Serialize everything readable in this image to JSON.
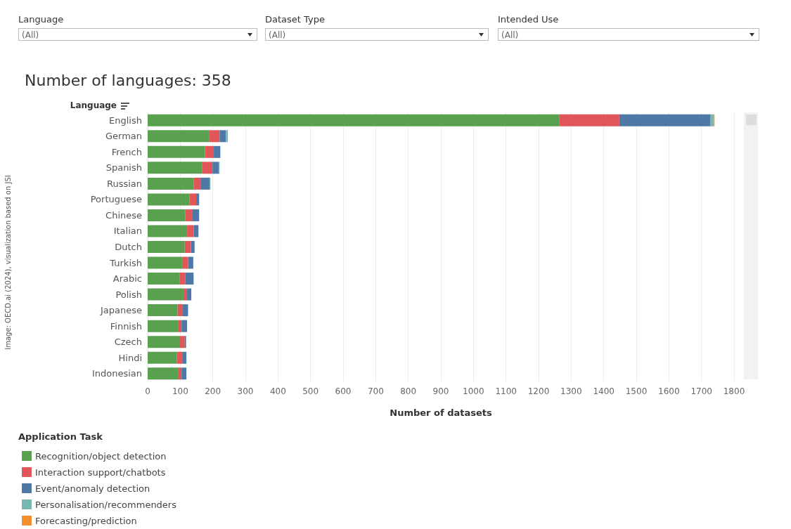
{
  "chart_data": {
    "type": "bar",
    "orientation": "horizontal",
    "stacked": true,
    "title": "Number of languages: 358",
    "xlabel": "Number of datasets",
    "ylabel": "Language",
    "legend_title": "Application Task",
    "annotations": [
      "Language",
      "(All)",
      "Dataset Type",
      "(All)",
      "Intended Use",
      "(All)",
      "Image: OECD.ai (2024), visualization based on JSI"
    ],
    "categories": [
      "English",
      "German",
      "French",
      "Spanish",
      "Russian",
      "Portuguese",
      "Chinese",
      "Italian",
      "Dutch",
      "Turkish",
      "Arabic",
      "Polish",
      "Japanese",
      "Finnish",
      "Czech",
      "Hindi",
      "Indonesian"
    ],
    "series": [
      {
        "name": "Recognition/object detection",
        "color": "#59a14f",
        "values": [
          1263,
          188,
          176,
          168,
          142,
          129,
          116,
          121,
          114,
          106,
          99,
          110,
          92,
          93,
          97,
          90,
          93
        ]
      },
      {
        "name": "Interaction support/chatbots",
        "color": "#e15759",
        "values": [
          185,
          33,
          27,
          31,
          22,
          20,
          22,
          21,
          19,
          18,
          17,
          11,
          16,
          11,
          17,
          16,
          11
        ]
      },
      {
        "name": "Event/anomaly detection",
        "color": "#4e79a7",
        "values": [
          280,
          19,
          20,
          20,
          26,
          9,
          20,
          14,
          11,
          16,
          25,
          13,
          16,
          17,
          4,
          13,
          15
        ]
      },
      {
        "name": "Personalisation/recommenders",
        "color": "#76b7b2",
        "values": [
          9,
          6,
          0,
          2,
          3,
          0,
          0,
          0,
          0,
          0,
          0,
          0,
          0,
          0,
          0,
          0,
          0
        ]
      },
      {
        "name": "Forecasting/prediction",
        "color": "#f28e2b",
        "values": [
          3,
          0,
          0,
          0,
          0,
          0,
          0,
          0,
          0,
          0,
          0,
          0,
          0,
          0,
          0,
          0,
          0
        ]
      }
    ],
    "xlim": [
      0,
      1800
    ],
    "xticks": [
      0,
      100,
      200,
      300,
      400,
      500,
      600,
      700,
      800,
      900,
      1000,
      1100,
      1200,
      1300,
      1400,
      1500,
      1600,
      1700,
      1800
    ],
    "grid": "x",
    "legend": "bottom left"
  }
}
